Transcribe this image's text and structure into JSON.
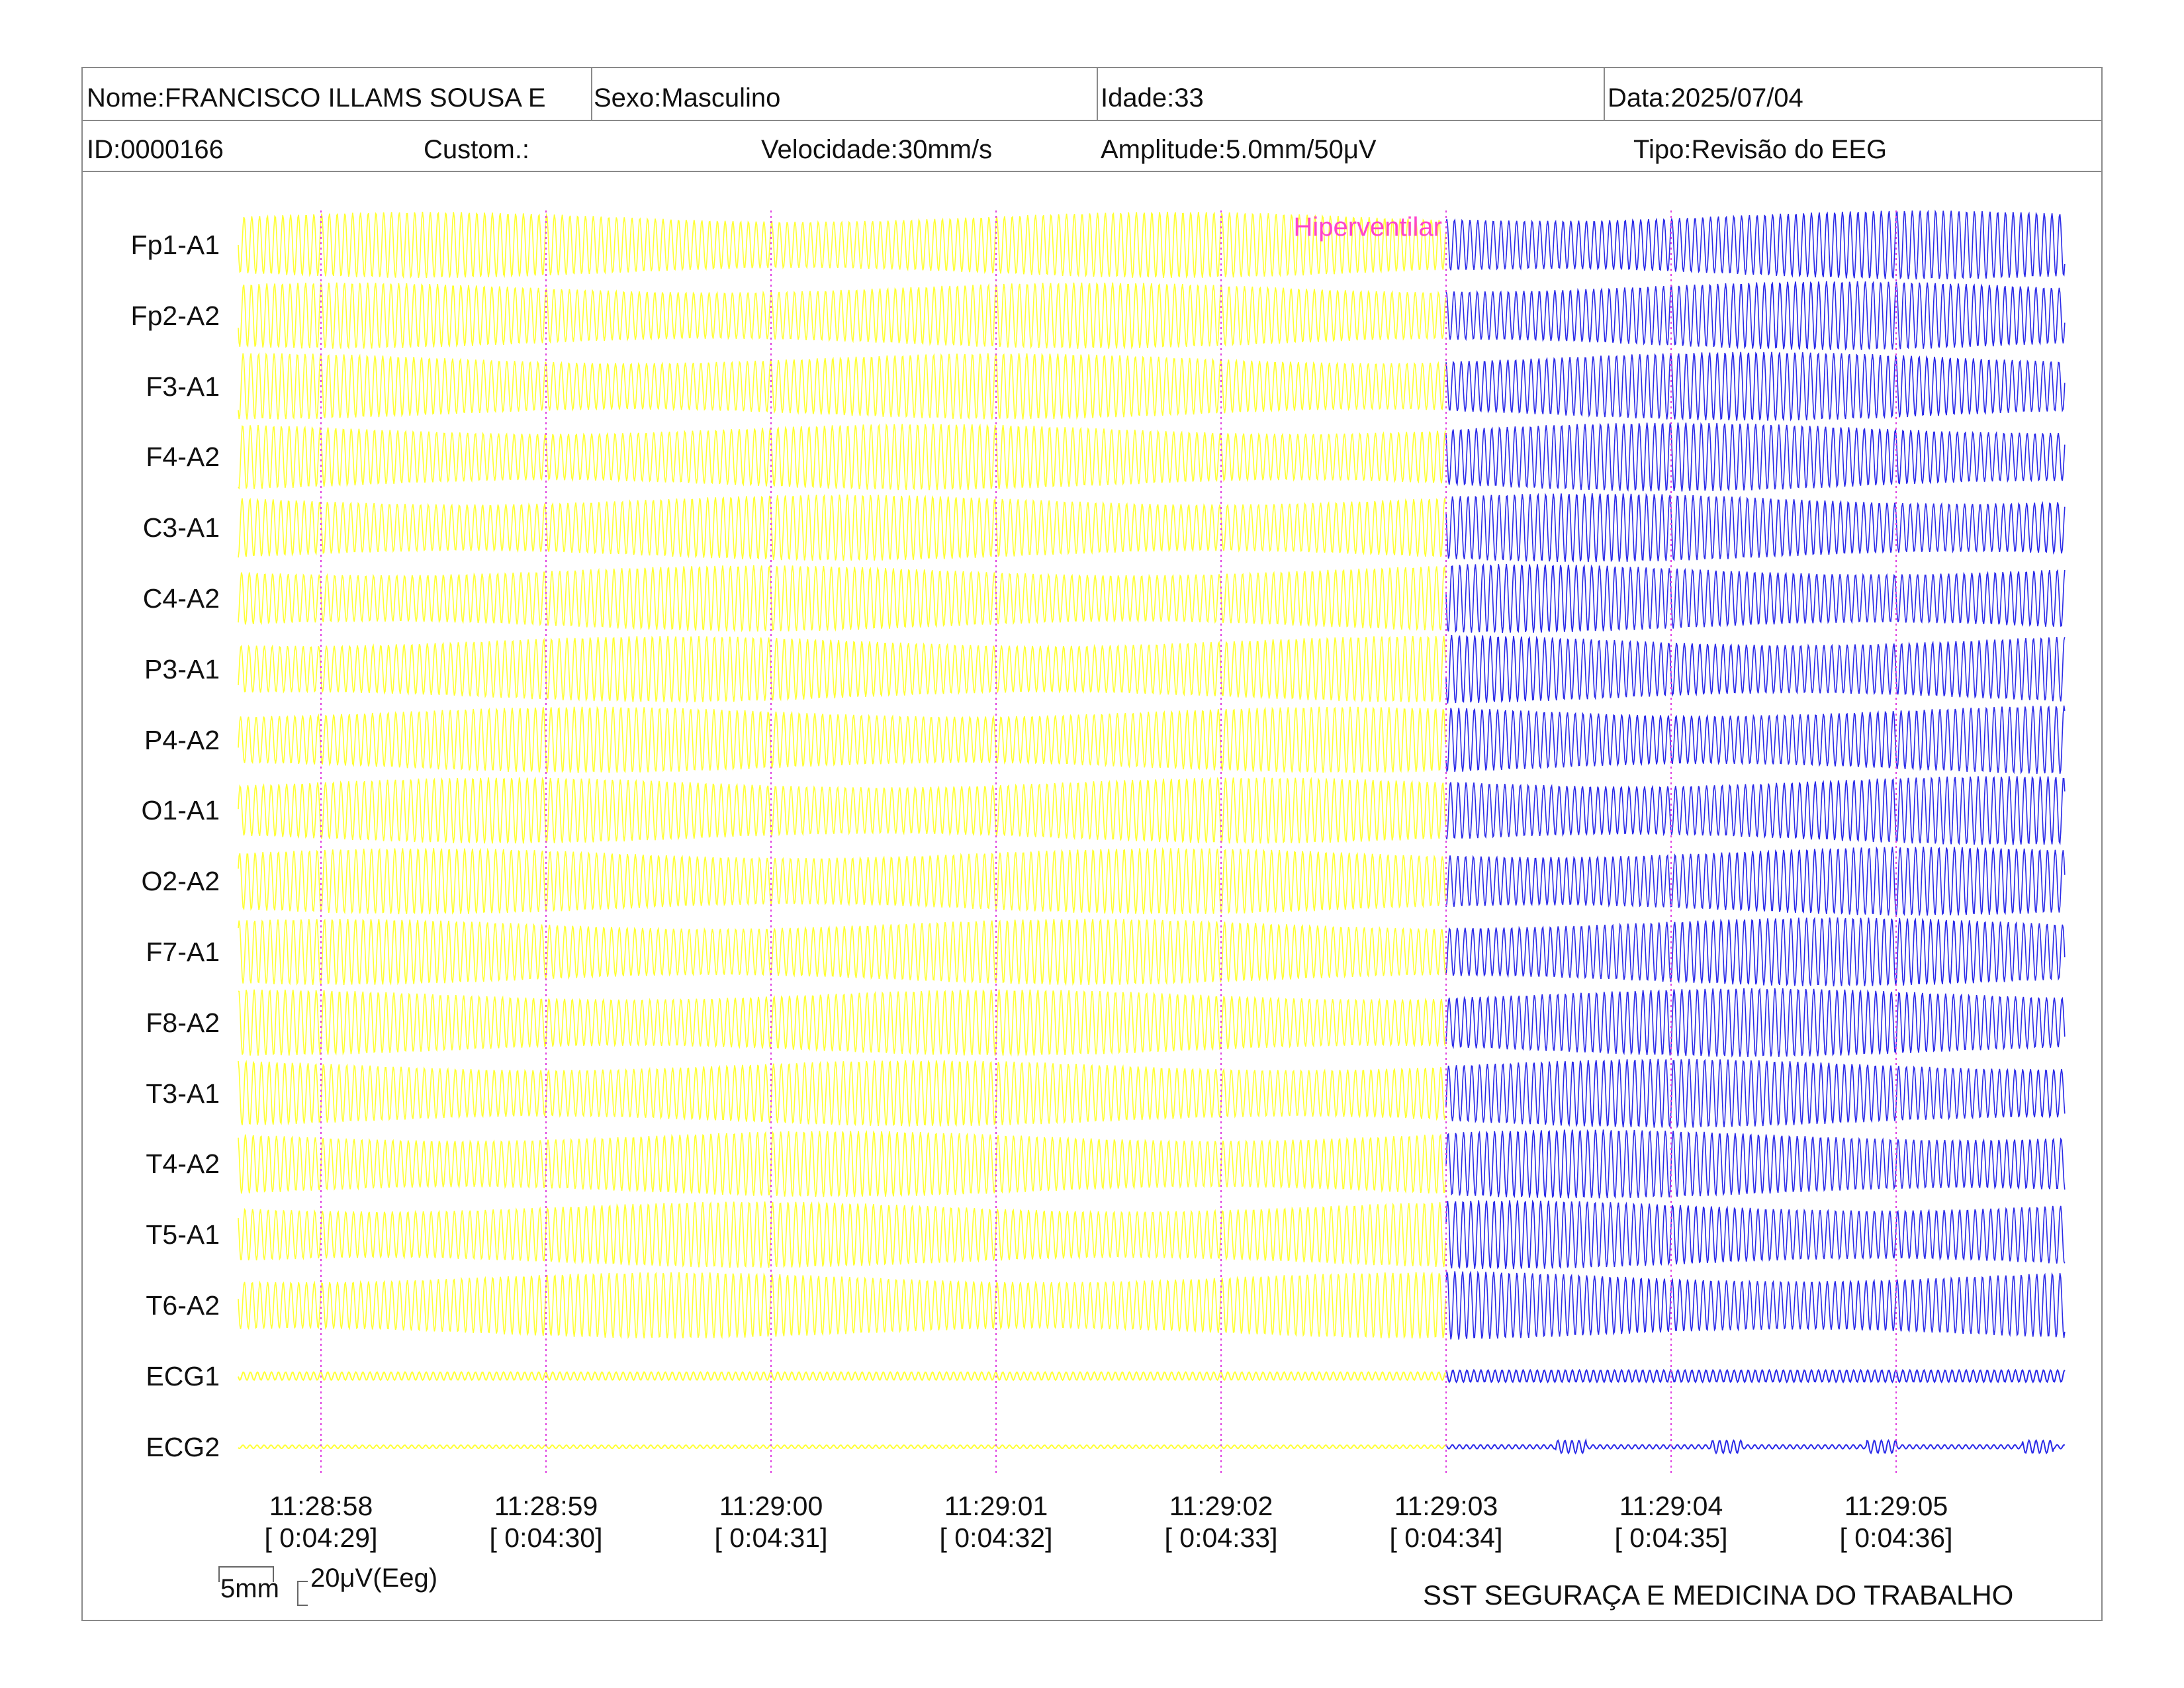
{
  "header": {
    "row1": {
      "nome": "Nome:FRANCISCO ILLAMS SOUSA E",
      "sexo": "Sexo:Masculino",
      "idade": "Idade:33",
      "data": "Data:2025/07/04"
    },
    "row2": {
      "id": "ID:0000166",
      "custom": "Custom.:",
      "velocidade": "Velocidade:30mm/s",
      "amplitude": "Amplitude:5.0mm/50μV",
      "tipo": "Tipo:Revisão do EEG"
    }
  },
  "chart_data": {
    "type": "line",
    "channels": [
      "Fp1-A1",
      "Fp2-A2",
      "F3-A1",
      "F4-A2",
      "C3-A1",
      "C4-A2",
      "P3-A1",
      "P4-A2",
      "O1-A1",
      "O2-A2",
      "F7-A1",
      "F8-A2",
      "T3-A1",
      "T4-A2",
      "T5-A1",
      "T6-A2",
      "ECG1",
      "ECG2"
    ],
    "x_ticks": [
      {
        "time": "11:28:58",
        "elapsed": "[ 0:04:29]"
      },
      {
        "time": "11:28:59",
        "elapsed": "[ 0:04:30]"
      },
      {
        "time": "11:29:00",
        "elapsed": "[ 0:04:31]"
      },
      {
        "time": "11:29:01",
        "elapsed": "[ 0:04:32]"
      },
      {
        "time": "11:29:02",
        "elapsed": "[ 0:04:33]"
      },
      {
        "time": "11:29:03",
        "elapsed": "[ 0:04:34]"
      },
      {
        "time": "11:29:04",
        "elapsed": "[ 0:04:35]"
      },
      {
        "time": "11:29:05",
        "elapsed": "[ 0:04:36]"
      }
    ],
    "event": {
      "label": "Hiperventilar",
      "time": "11:29:03"
    },
    "series": [
      {
        "segment": "before-event",
        "color": "#ffff33",
        "time_range": [
          "11:28:57.6",
          "11:29:03"
        ]
      },
      {
        "segment": "after-event",
        "color": "#2a2ae8",
        "time_range": [
          "11:29:03",
          "11:29:05.75"
        ]
      }
    ],
    "signal": {
      "eeg_frequency_hz": 29,
      "ecg_frequency_hz": 32
    },
    "colors": {
      "marker": "#e040e0",
      "event_label": "#ff44cc"
    }
  },
  "scale": {
    "time_label": "5mm",
    "amp_label": "20μV(Eeg)"
  },
  "footer": {
    "organization": "SST SEGURAÇA E MEDICINA DO TRABALHO"
  }
}
